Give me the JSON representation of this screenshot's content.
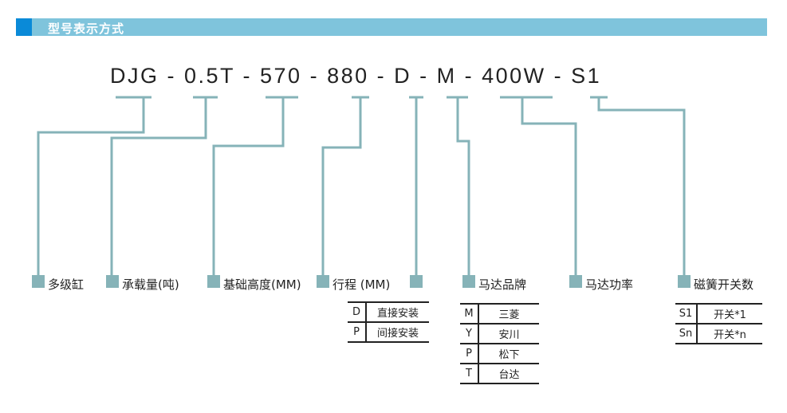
{
  "header": {
    "title": "型号表示方式"
  },
  "model_code": "DJG - 0.5T - 570 - 880 - D - M - 400W - S1",
  "colors": {
    "line": "#86b3b8",
    "header_bar": "#7fc4dc",
    "header_accent": "#0a8ad8"
  },
  "labels": [
    "多级缸",
    "承载量(吨)",
    "基础高度(MM)",
    "行程 (MM)",
    "",
    "马达品牌",
    "马达功率",
    "磁簧开关数"
  ],
  "mount_table": [
    {
      "k": "D",
      "v": "直接安装"
    },
    {
      "k": "P",
      "v": "间接安装"
    }
  ],
  "motor_table": [
    {
      "k": "M",
      "v": "三菱"
    },
    {
      "k": "Y",
      "v": "安川"
    },
    {
      "k": "P",
      "v": "松下"
    },
    {
      "k": "T",
      "v": "台达"
    }
  ],
  "switch_table": [
    {
      "k": "S1",
      "v": "开关*1"
    },
    {
      "k": "Sn",
      "v": "开关*n"
    }
  ]
}
